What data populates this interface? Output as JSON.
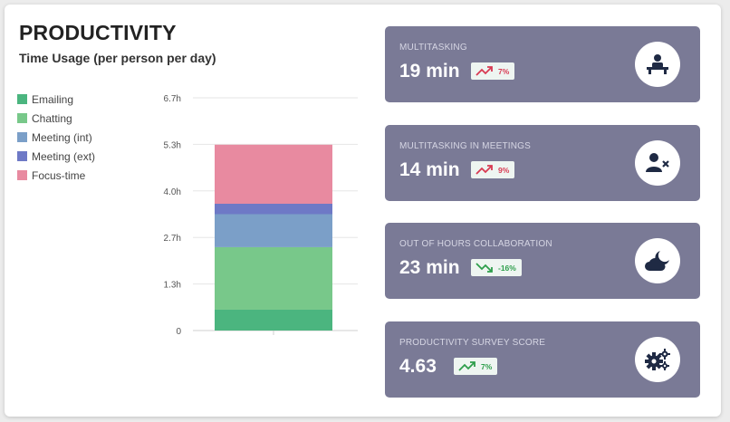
{
  "header": {
    "title": "PRODUCTIVITY",
    "subtitle": "Time Usage (per person per day)"
  },
  "chart_data": {
    "type": "bar",
    "stacked": true,
    "categories": [
      ""
    ],
    "yticks": [
      "0",
      "1.3h",
      "2.7h",
      "4.0h",
      "5.3h",
      "6.7h"
    ],
    "ylim": [
      0,
      6.7
    ],
    "series": [
      {
        "name": "Emailing",
        "color": "#4bb57f",
        "values": [
          0.6
        ]
      },
      {
        "name": "Chatting",
        "color": "#78c88a",
        "values": [
          1.8
        ]
      },
      {
        "name": "Meeting (int)",
        "color": "#7b9fc8",
        "values": [
          0.95
        ]
      },
      {
        "name": "Meeting (ext)",
        "color": "#6e79c6",
        "values": [
          0.3
        ]
      },
      {
        "name": "Focus-time",
        "color": "#e88aa0",
        "values": [
          1.7
        ]
      }
    ],
    "grid": true,
    "legend_position": "left"
  },
  "kpis": [
    {
      "label": "MULTITASKING",
      "value": "19 min",
      "change": "7%",
      "trend": "up",
      "icon": "person-at-desk-icon"
    },
    {
      "label": "MULTITASKING IN MEETINGS",
      "value": "14 min",
      "change": "9%",
      "trend": "up",
      "icon": "user-remove-icon"
    },
    {
      "label": "OUT OF HOURS COLLABORATION",
      "value": "23 min",
      "change": "-16%",
      "trend": "down",
      "icon": "cloud-moon-icon"
    },
    {
      "label": "PRODUCTIVITY SURVEY SCORE",
      "value": "4.63",
      "change": "7%",
      "trend": "up-good",
      "icon": "cogs-icon"
    }
  ],
  "colors": {
    "tile_background": "#7a7a96",
    "trend_bad": "#d83a52",
    "trend_good": "#2e9e4b",
    "icon_dark": "#1f2a44"
  }
}
